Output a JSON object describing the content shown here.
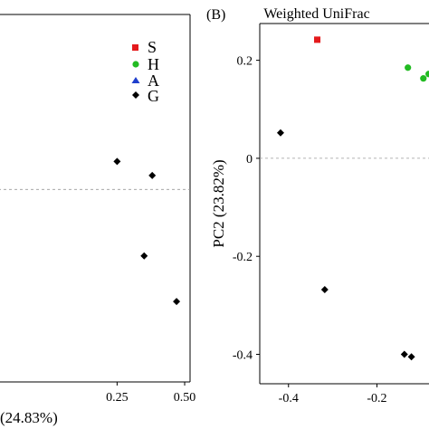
{
  "chart_data": [
    {
      "type": "scatter",
      "title": "",
      "xlabel": "(24.83%)",
      "ylabel": "",
      "xticks": [
        "0.25",
        "0.50"
      ],
      "xlim": [
        -0.19,
        0.52
      ],
      "ylim": [
        -0.5,
        0.55
      ],
      "zero_line": 0.05,
      "legend": {
        "position": "top-right",
        "entries": [
          {
            "label": "S",
            "marker": "square",
            "color": "#e41a1c"
          },
          {
            "label": "H",
            "marker": "circle",
            "color": "#22bb22"
          },
          {
            "label": "A",
            "marker": "triangle",
            "color": "#1f3fcc"
          },
          {
            "label": "G",
            "marker": "diamond",
            "color": "#000000"
          }
        ]
      },
      "series": [
        {
          "name": "G",
          "marker": "diamond",
          "color": "#000000",
          "points": [
            [
              0.25,
              0.13
            ],
            [
              0.38,
              0.09
            ],
            [
              0.35,
              -0.14
            ],
            [
              0.47,
              -0.27
            ]
          ]
        }
      ]
    },
    {
      "type": "scatter",
      "title": "Weighted UniFrac",
      "panel_label": "(B)",
      "xlabel": "",
      "ylabel": "PC2 (23.82%)",
      "xticks": [
        "-0.4",
        "-0.2"
      ],
      "yticks": [
        "0.2",
        "0",
        "-0.2",
        "-0.4"
      ],
      "xlim": [
        -0.465,
        -0.07
      ],
      "ylim": [
        -0.46,
        0.275
      ],
      "zero_line": 0,
      "series": [
        {
          "name": "S",
          "marker": "square",
          "color": "#e41a1c",
          "points": [
            [
              -0.335,
              0.242
            ]
          ]
        },
        {
          "name": "H",
          "marker": "circle",
          "color": "#22bb22",
          "points": [
            [
              -0.13,
              0.185
            ],
            [
              -0.095,
              0.163
            ],
            [
              -0.083,
              0.172
            ]
          ]
        },
        {
          "name": "G",
          "marker": "diamond",
          "color": "#000000",
          "points": [
            [
              -0.418,
              0.052
            ],
            [
              -0.318,
              -0.268
            ],
            [
              -0.138,
              -0.4
            ],
            [
              -0.122,
              -0.405
            ]
          ]
        }
      ]
    }
  ]
}
